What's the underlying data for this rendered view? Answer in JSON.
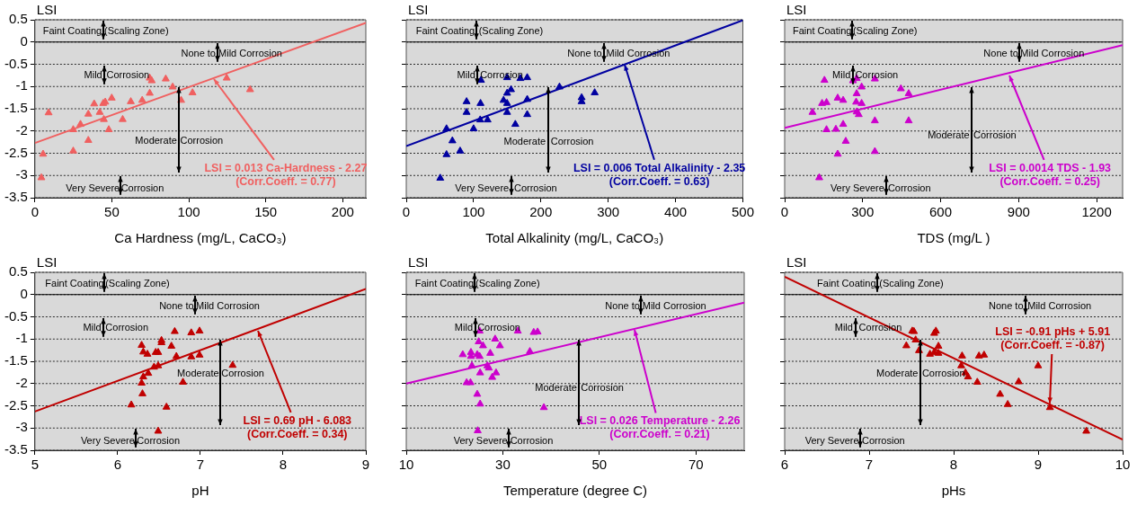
{
  "chart_data": [
    {
      "type": "scatter",
      "xlabel": "Ca Hardness (mg/L, CaCO₃)",
      "ylabel": "LSI",
      "xlim": [
        0,
        215
      ],
      "xticks": [
        0,
        50,
        100,
        150,
        200
      ],
      "ylim": [
        -3.5,
        0.5
      ],
      "yticks": [
        0.5,
        0,
        -0.5,
        -1,
        -1.5,
        -2,
        -2.5,
        -3,
        -3.5
      ],
      "grid": "y",
      "ref_lines": [
        {
          "axis": "y",
          "value": 0,
          "color": "#000000",
          "line_style": "solid"
        }
      ],
      "annotations": [
        "Faint Coating",
        "(Scaling Zone)",
        "None to",
        "Mild Corrosion",
        "Mild",
        "Corrosion",
        "Moderate",
        "Corrosion",
        "Very Severe",
        "Corrosion",
        {
          "text": "LSI = 0.013 Ca-Hardness - 2.27\n(Corr.Coeff. = 0.77)",
          "x": 116.5,
          "y": -0.84
        }
      ],
      "series": [
        {
          "color": "#f06060",
          "marker": "triangle",
          "x": [
            4.2,
            5.3,
            8.9,
            24.9,
            24.9,
            29.6,
            34.7,
            34.7,
            38.5,
            42.1,
            44.4,
            45.7,
            44.8,
            48,
            49.9,
            57,
            62.3,
            69.7,
            74.6,
            74.6,
            75.9,
            85,
            89.5,
            95,
            102.4,
            124.6,
            139.8
          ],
          "values": [
            -3.05,
            -2.52,
            -1.59,
            -2.45,
            -1.97,
            -1.85,
            -2.21,
            -1.62,
            -1.39,
            -1.58,
            -1.38,
            -1.35,
            -1.74,
            -1.97,
            -1.26,
            -1.74,
            -1.34,
            -1.31,
            -1.15,
            -0.81,
            -0.87,
            -0.83,
            -1.01,
            -1.31,
            -1.14,
            -0.81,
            -1.07
          ]
        },
        {
          "type": "line",
          "color": "#f06060",
          "x": [
            0,
            215
          ],
          "values": [
            -2.27,
            0.43
          ]
        }
      ]
    },
    {
      "type": "scatter",
      "xlabel": "Total Alkalinity (mg/L, CaCO₃)",
      "xlim": [
        0,
        500
      ],
      "xticks": [
        0,
        100,
        200,
        300,
        400,
        500
      ],
      "ylim": [
        -3.5,
        0.5
      ],
      "yticks": [
        0.5,
        0,
        -0.5,
        -1,
        -1.5,
        -2,
        -2.5,
        -3,
        -3.5
      ],
      "tick_labels": "x",
      "grid": "y",
      "ylabel": "LSI",
      "ref_lines": [
        {
          "axis": "y",
          "value": 0,
          "color": "#000000",
          "line_style": "solid"
        }
      ],
      "annotations": [
        "Faint Coating",
        "(Scaling Zone)",
        "None to",
        "Mild Corrosion",
        "Mild",
        "Corrosion",
        "Moderate",
        "Corrosion",
        "Very Severe",
        "Corrosion",
        {
          "text": "LSI = 0.006 Total Alkalinity - 2.35\n(Corr.Coeff. = 0.63)",
          "x": 325,
          "y": -0.52
        }
      ],
      "series": [
        {
          "color": "#0000a0",
          "marker": "triangle",
          "x": [
            50.5,
            59.8,
            59.8,
            68.5,
            80,
            89.6,
            89.6,
            100,
            109.8,
            110.3,
            111,
            120.8,
            144.5,
            149.8,
            149.8,
            149.8,
            149.8,
            155.6,
            162,
            169.5,
            179.7,
            179.7,
            179.7,
            227.6,
            260.5,
            260.5,
            279.9
          ],
          "values": [
            -3.06,
            -2.53,
            -1.95,
            -2.22,
            -2.45,
            -1.58,
            -1.34,
            -1.95,
            -1.75,
            -1.38,
            -0.86,
            -1.75,
            -1.31,
            -1.38,
            -1.58,
            -1.15,
            -0.8,
            -1.07,
            -1.85,
            -0.82,
            -0.8,
            -1.29,
            -1.63,
            -1.01,
            -1.25,
            -1.34,
            -1.14
          ]
        },
        {
          "type": "line",
          "color": "#0000a0",
          "x": [
            0,
            500
          ],
          "values": [
            -2.34,
            0.49
          ]
        }
      ]
    },
    {
      "type": "scatter",
      "xlabel": "TDS (mg/L )",
      "xlim": [
        0,
        1300
      ],
      "xticks": [
        0,
        300,
        600,
        900,
        1200
      ],
      "ylim": [
        -3.5,
        0.5
      ],
      "yticks": [
        0.5,
        0,
        -0.5,
        -1,
        -1.5,
        -2,
        -2.5,
        -3,
        -3.5
      ],
      "tick_labels": "x",
      "grid": "y",
      "ylabel": "LSI",
      "ref_lines": [
        {
          "axis": "y",
          "value": 0,
          "color": "#000000",
          "line_style": "solid"
        }
      ],
      "annotations": [
        "Faint Coating",
        "(Scaling Zone)",
        "None to",
        "Mild Corrosion",
        "Mild",
        "Corrosion",
        "Moderate",
        "Corrosion",
        "Very Severe",
        "Corrosion",
        {
          "text": "LSI = 0.0014 TDS - 1.93\n(Corr.Coeff. = 0.25)",
          "x": 863,
          "y": -0.76
        }
      ],
      "series": [
        {
          "color": "#cc00cc",
          "marker": "triangle",
          "x": [
            107,
            133,
            144,
            153,
            161,
            161,
            197,
            204,
            204,
            225,
            225,
            235,
            263,
            277,
            277,
            275,
            277,
            285,
            296,
            296,
            347,
            347,
            347,
            447,
            477,
            477
          ],
          "values": [
            -1.58,
            -3.05,
            -1.38,
            -0.86,
            -1.36,
            -1.97,
            -1.96,
            -2.52,
            -1.26,
            -1.31,
            -1.85,
            -2.23,
            -0.87,
            -0.82,
            -1.16,
            -1.35,
            -1.57,
            -1.63,
            -1.01,
            -1.38,
            -0.83,
            -1.77,
            -2.46,
            -1.05,
            -1.16,
            -1.77
          ]
        },
        {
          "type": "line",
          "color": "#cc00cc",
          "x": [
            0,
            1300
          ],
          "values": [
            -1.93,
            -0.07
          ]
        }
      ]
    },
    {
      "type": "scatter",
      "xlabel": "pH",
      "ylabel": "LSI",
      "xlim": [
        5,
        9
      ],
      "xticks": [
        5,
        6,
        7,
        8,
        9
      ],
      "ylim": [
        -3.5,
        0.5
      ],
      "yticks": [
        0.5,
        0,
        -0.5,
        -1,
        -1.5,
        -2,
        -2.5,
        -3,
        -3.5
      ],
      "grid": "y",
      "ref_lines": [
        {
          "axis": "y",
          "value": 0,
          "color": "#000000",
          "line_style": "solid"
        }
      ],
      "annotations": [
        "Faint Coating",
        "(Scaling Zone)",
        "None to",
        "Mild Corrosion",
        "Mild",
        "Corrosion",
        "Moderate",
        "Corrosion",
        "Very Severe",
        "Corrosion",
        {
          "text": "LSI = 0.69 pH - 6.083\n(Corr.Coeff. = 0.34)",
          "x": 7.7,
          "y": -0.82
        }
      ],
      "series": [
        {
          "color": "#c00000",
          "marker": "triangle",
          "x": [
            6.165,
            6.29,
            6.31,
            6.36,
            6.29,
            6.31,
            6.3,
            6.37,
            6.44,
            6.46,
            6.49,
            6.49,
            6.49,
            6.53,
            6.53,
            6.59,
            6.65,
            6.69,
            6.71,
            6.79,
            6.89,
            6.89,
            6.99,
            6.99,
            7.39
          ],
          "values": [
            -2.48,
            -1.14,
            -1.29,
            -1.34,
            -1.99,
            -1.85,
            -2.23,
            -1.77,
            -1.63,
            -1.3,
            -1.3,
            -1.6,
            -3.07,
            -1.03,
            -1.08,
            -2.53,
            -1.16,
            -0.83,
            -1.39,
            -1.97,
            -0.86,
            -1.4,
            -0.82,
            -1.36,
            -1.59
          ]
        },
        {
          "type": "line",
          "color": "#c00000",
          "x": [
            5,
            9
          ],
          "values": [
            -2.63,
            0.13
          ]
        }
      ]
    },
    {
      "type": "scatter",
      "xlabel": "Temperature (degree C)",
      "xlim": [
        10,
        80
      ],
      "xticks": [
        10,
        30,
        50,
        70
      ],
      "ylim": [
        -3.5,
        0.5
      ],
      "yticks": [
        0.5,
        0,
        -0.5,
        -1,
        -1.5,
        -2,
        -2.5,
        -3,
        -3.5
      ],
      "tick_labels": "x",
      "grid": "y",
      "ylabel": "LSI",
      "ref_lines": [
        {
          "axis": "y",
          "value": 0,
          "color": "#000000",
          "line_style": "solid"
        }
      ],
      "annotations": [
        "Faint Coating",
        "(Scaling Zone)",
        "None to",
        "Mild Corrosion",
        "Mild",
        "Corrosion",
        "Moderate",
        "Corrosion",
        "Very Severe",
        "Corrosion",
        {
          "text": "LSI = 0.026 Temperature - 2.26\n(Corr.Coeff. = 0.21)",
          "x": 57.3,
          "y": -0.79
        }
      ],
      "series": [
        {
          "color": "#cc00cc",
          "marker": "triangle",
          "x": [
            21.7,
            23.4,
            23.4,
            22.5,
            23.3,
            23.6,
            24.7,
            25.2,
            25,
            25.2,
            25.9,
            25.3,
            24.7,
            25.3,
            24.8,
            26.8,
            27.4,
            27.1,
            27.8,
            28.4,
            28.6,
            29.4,
            33.1,
            35.6,
            36.4,
            37.2,
            38.5
          ],
          "values": [
            -1.35,
            -1.3,
            -1.39,
            -1.98,
            -1.98,
            -1.6,
            -1.35,
            -1.39,
            -1.06,
            -0.82,
            -1.15,
            -1.76,
            -2.24,
            -2.46,
            -3.06,
            -1.6,
            -1.32,
            -1.65,
            -1.86,
            -1,
            -1.76,
            -1.15,
            -0.82,
            -1.28,
            -0.85,
            -0.84,
            -2.54
          ]
        },
        {
          "type": "line",
          "color": "#cc00cc",
          "x": [
            10,
            80
          ],
          "values": [
            -2,
            -0.18
          ]
        }
      ]
    },
    {
      "type": "scatter",
      "xlabel": "pHs",
      "xlim": [
        6,
        10
      ],
      "xticks": [
        6,
        7,
        8,
        9,
        10
      ],
      "ylim": [
        -3.5,
        0.5
      ],
      "yticks": [
        0.5,
        0,
        -0.5,
        -1,
        -1.5,
        -2,
        -2.5,
        -3,
        -3.5
      ],
      "tick_labels": "x",
      "grid": "y",
      "ylabel": "LSI",
      "ref_lines": [
        {
          "axis": "y",
          "value": 0,
          "color": "#000000",
          "line_style": "solid"
        }
      ],
      "annotations": [
        "Faint Coating",
        "(Scaling Zone)",
        "None to",
        "Mild Corrosion",
        "Mild",
        "Corrosion",
        "Moderate",
        "Corrosion",
        "Very Severe",
        "Corrosion",
        {
          "text": "LSI = -0.91 pHs + 5.91\n(Corr.Coeff. = -0.87)",
          "x": 9.14,
          "y": -2.45
        }
      ],
      "series": [
        {
          "color": "#c00000",
          "marker": "triangle",
          "x": [
            7.44,
            7.51,
            7.53,
            7.55,
            7.59,
            7.72,
            7.77,
            7.79,
            7.77,
            7.82,
            7.82,
            8.1,
            8.09,
            8.14,
            8.17,
            8.28,
            8.3,
            8.36,
            8.55,
            8.64,
            8.77,
            9,
            9.14,
            9.57
          ],
          "values": [
            -1.15,
            -0.82,
            -0.83,
            -1.02,
            -1.26,
            -1.34,
            -0.87,
            -0.82,
            -1.3,
            -1.16,
            -1.32,
            -1.38,
            -1.6,
            -1.76,
            -1.85,
            -1.97,
            -1.38,
            -1.36,
            -2.24,
            -2.47,
            -1.96,
            -1.6,
            -2.54,
            -3.07
          ]
        },
        {
          "type": "line",
          "color": "#c00000",
          "x": [
            6,
            10
          ],
          "values": [
            0.4,
            -3.26
          ]
        }
      ]
    }
  ]
}
